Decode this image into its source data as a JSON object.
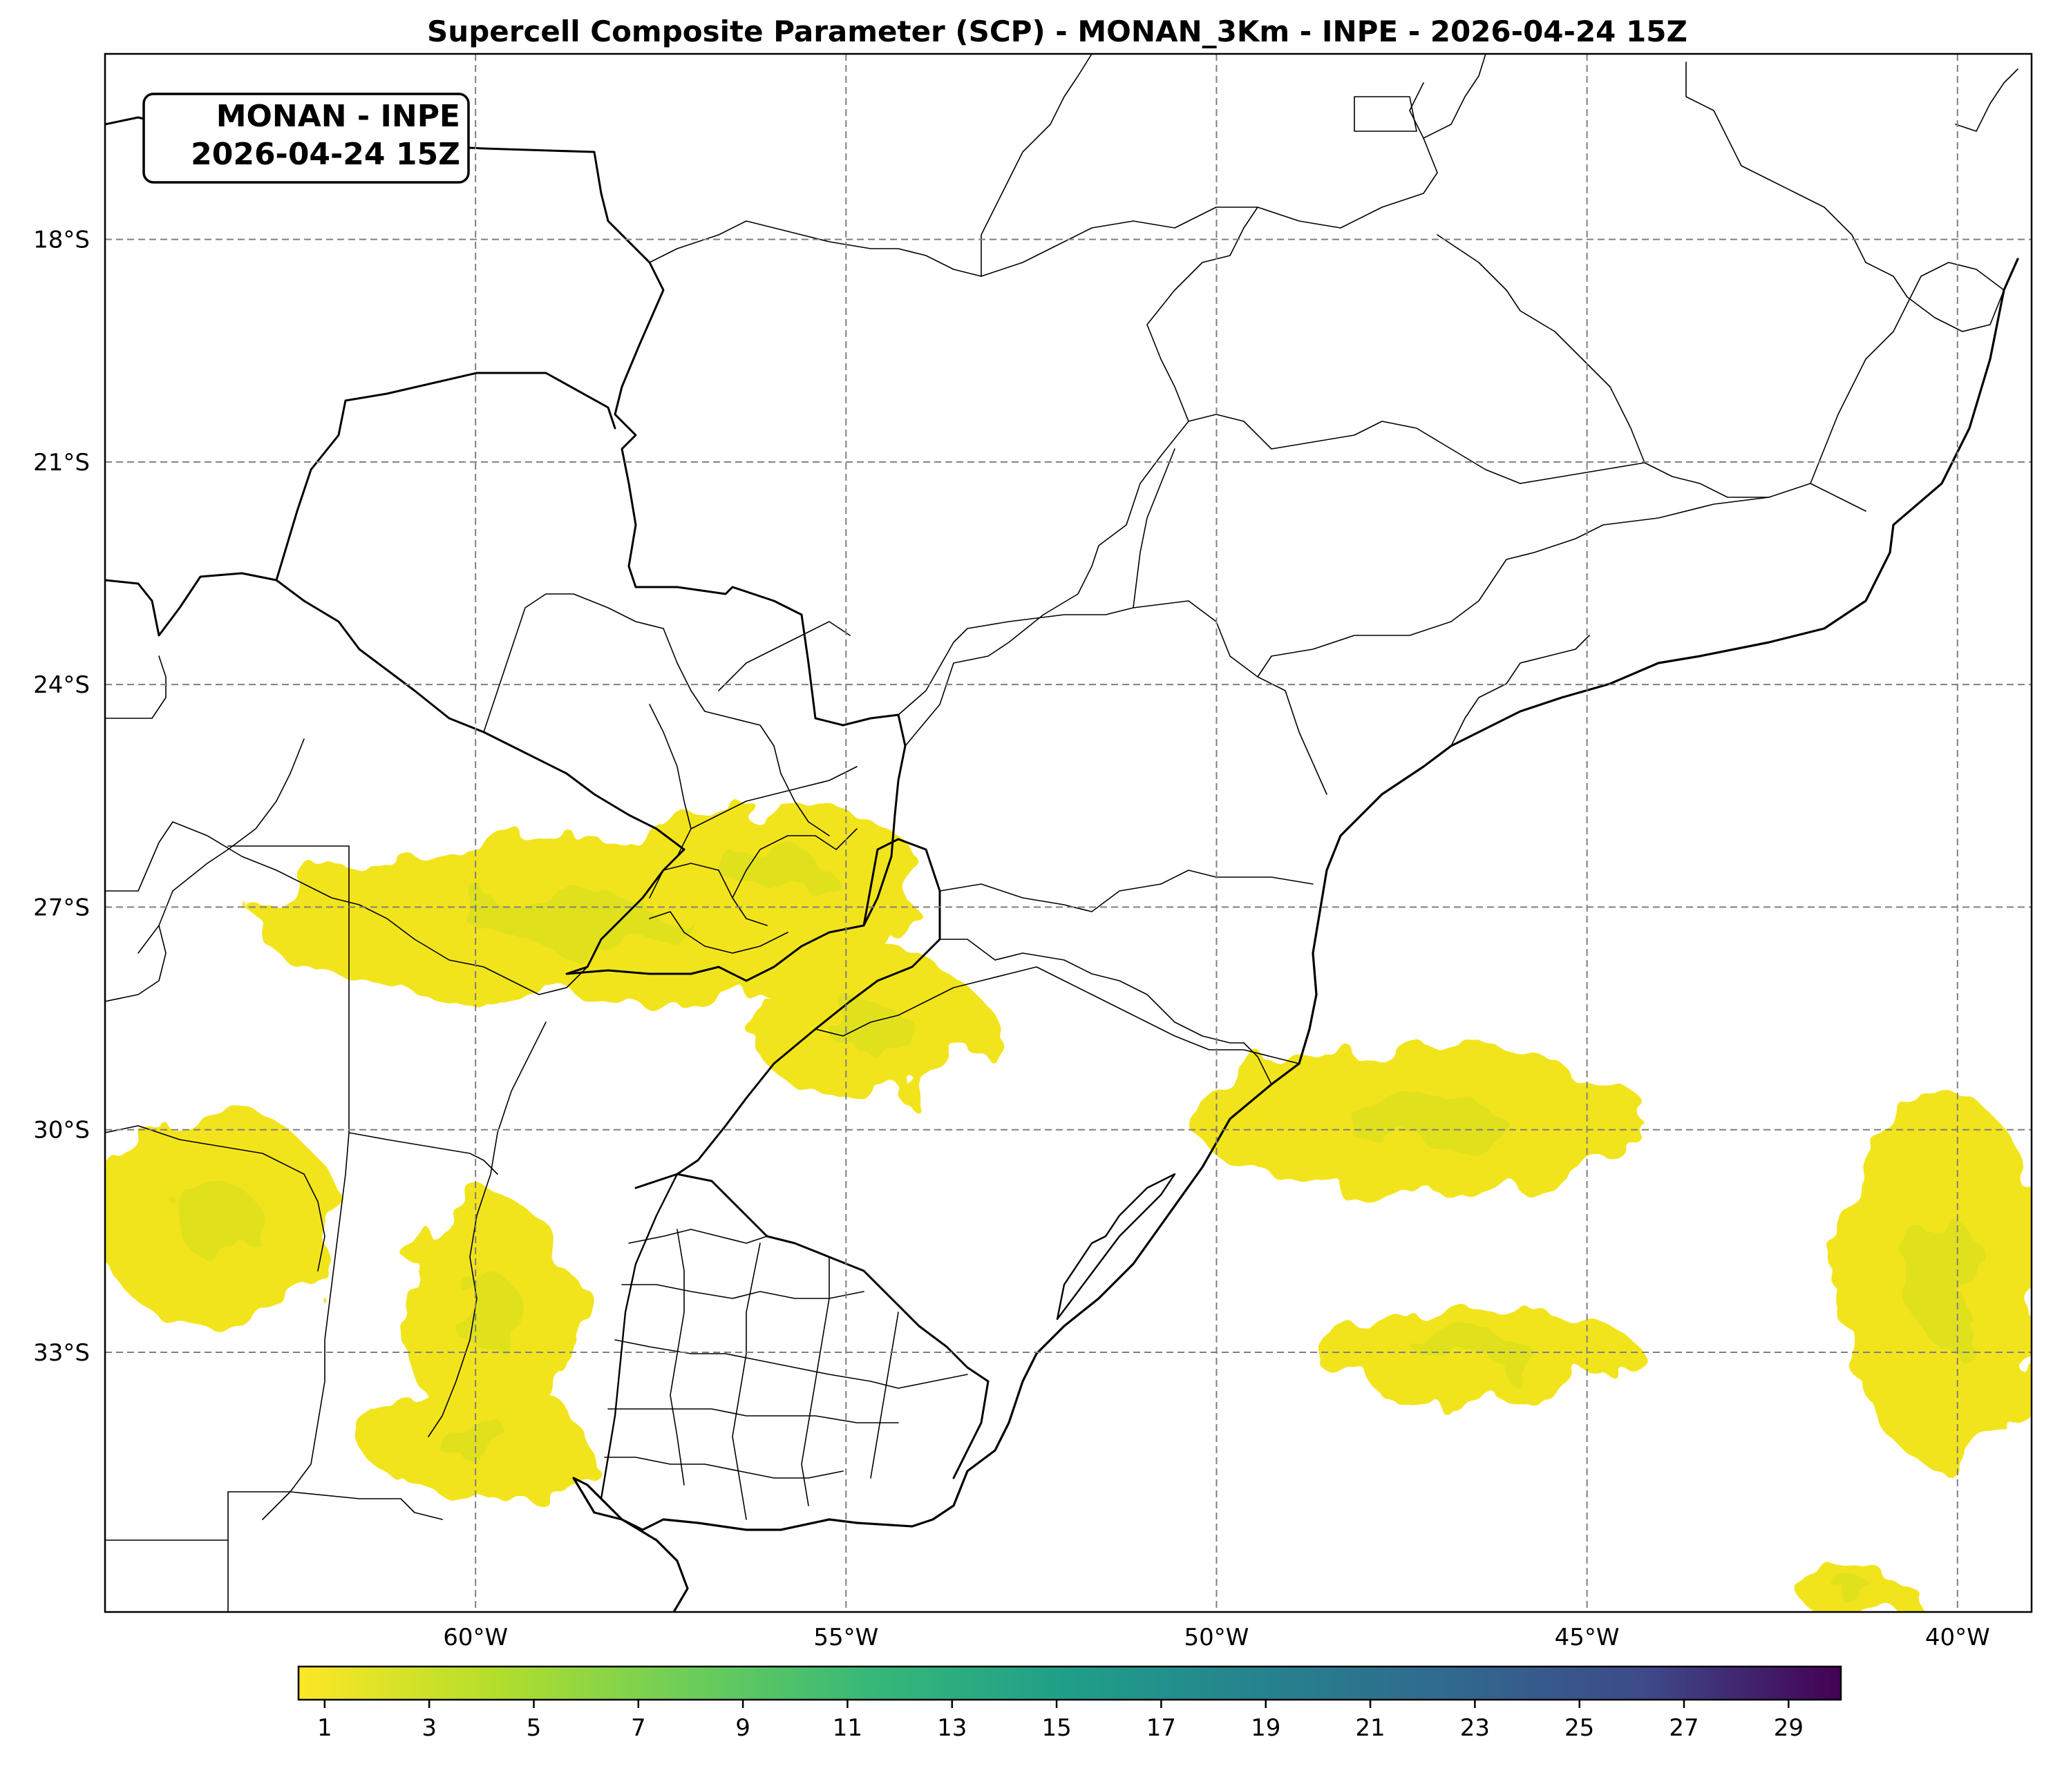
{
  "title": "Supercell Composite Parameter (SCP) - MONAN_3Km - INPE - 2026-04-24 15Z",
  "info_box": {
    "line1": "MONAN - INPE",
    "line2": "2026-04-24 15Z"
  },
  "map": {
    "lon_range": [
      -65.0,
      -39.0
    ],
    "lat_range": [
      -36.5,
      -15.5
    ],
    "gridlines": "dashed gray",
    "lat_ticks": [
      {
        "value": -18,
        "label": "18°S"
      },
      {
        "value": -21,
        "label": "21°S"
      },
      {
        "value": -24,
        "label": "24°S"
      },
      {
        "value": -27,
        "label": "27°S"
      },
      {
        "value": -30,
        "label": "30°S"
      },
      {
        "value": -33,
        "label": "33°S"
      }
    ],
    "lon_ticks": [
      {
        "value": -60,
        "label": "60°W"
      },
      {
        "value": -55,
        "label": "55°W"
      },
      {
        "value": -50,
        "label": "50°W"
      },
      {
        "value": -45,
        "label": "45°W"
      },
      {
        "value": -40,
        "label": "40°W"
      }
    ]
  },
  "scp_fields": [
    {
      "name": "scp-area-paraguay-corrientes",
      "lon": -58.5,
      "lat": -27.2,
      "rx": 4.5,
      "ry": 1.1
    },
    {
      "name": "scp-area-misiones",
      "lon": -56.0,
      "lat": -26.5,
      "rx": 2.0,
      "ry": 0.9
    },
    {
      "name": "scp-area-rio-grande-do-sul",
      "lon": -54.7,
      "lat": -28.6,
      "rx": 1.6,
      "ry": 1.0
    },
    {
      "name": "scp-area-cordoba",
      "lon": -63.5,
      "lat": -31.2,
      "rx": 1.6,
      "ry": 1.5
    },
    {
      "name": "scp-area-entre-rios",
      "lon": -59.8,
      "lat": -32.5,
      "rx": 1.2,
      "ry": 1.6
    },
    {
      "name": "scp-area-buenos-aires",
      "lon": -60.0,
      "lat": -34.2,
      "rx": 1.5,
      "ry": 0.8
    },
    {
      "name": "scp-area-ocean-south-brazil",
      "lon": -47.2,
      "lat": -29.9,
      "rx": 3.1,
      "ry": 1.0
    },
    {
      "name": "scp-area-ocean-south",
      "lon": -46.5,
      "lat": -33.0,
      "rx": 2.2,
      "ry": 0.6
    },
    {
      "name": "scp-area-ocean-east",
      "lon": -40.2,
      "lat": -32.0,
      "rx": 1.4,
      "ry": 2.5
    },
    {
      "name": "scp-area-ocean-southeast",
      "lon": -41.3,
      "lat": -36.3,
      "rx": 0.8,
      "ry": 0.3
    }
  ],
  "colorbar": {
    "colormap": "viridis_r",
    "min": 0.5,
    "max": 30,
    "ticks": [
      "1",
      "3",
      "5",
      "7",
      "9",
      "11",
      "13",
      "15",
      "17",
      "19",
      "21",
      "23",
      "25",
      "27",
      "29"
    ]
  }
}
